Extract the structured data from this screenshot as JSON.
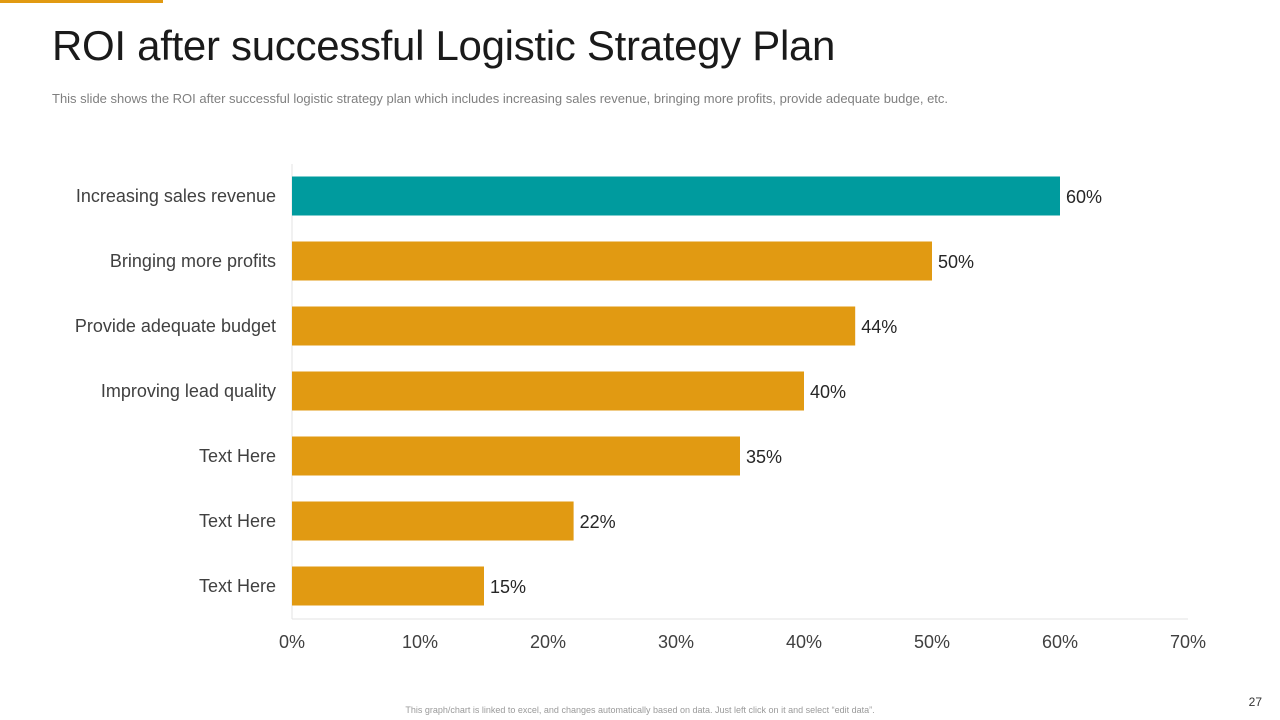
{
  "slide": {
    "title": "ROI after successful Logistic Strategy Plan",
    "subtitle": "This slide shows the ROI after successful logistic strategy plan which includes increasing sales revenue, bringing more profits, provide adequate budge, etc.",
    "footer_note": "This graph/chart is linked to excel, and changes automatically based on data. Just left click on it and select “edit data”.",
    "page_number": "27"
  },
  "colors": {
    "accent": "#E19A12",
    "highlight": "#009B9E",
    "bar": "#E19A12"
  },
  "chart_data": {
    "type": "bar",
    "orientation": "horizontal",
    "title": "",
    "xlabel": "",
    "ylabel": "",
    "categories": [
      "Increasing sales revenue",
      "Bringing more profits",
      "Provide adequate budget",
      "Improving lead quality",
      "Text Here",
      "Text Here",
      "Text Here"
    ],
    "values": [
      60,
      50,
      44,
      40,
      35,
      22,
      15
    ],
    "data_labels": [
      "60%",
      "50%",
      "44%",
      "40%",
      "35%",
      "22%",
      "15%"
    ],
    "highlighted_category_index": 0,
    "xlim": [
      0,
      70
    ],
    "x_ticks": [
      0,
      10,
      20,
      30,
      40,
      50,
      60,
      70
    ],
    "x_tick_labels": [
      "0%",
      "10%",
      "20%",
      "30%",
      "40%",
      "50%",
      "60%",
      "70%"
    ],
    "grid": false,
    "legend": "none"
  }
}
